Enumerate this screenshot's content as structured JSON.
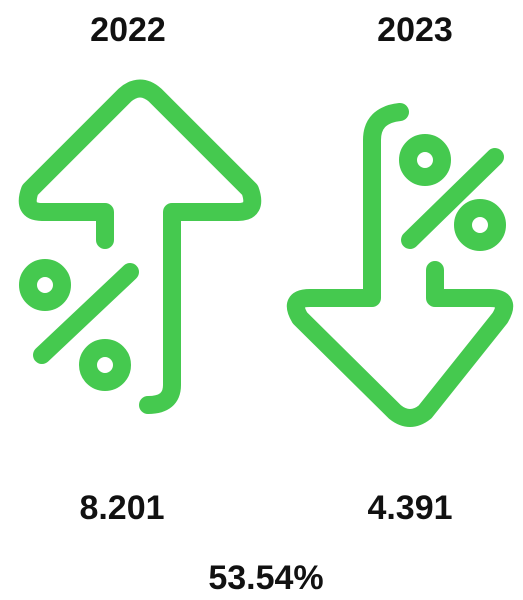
{
  "panels": [
    {
      "year": "2022",
      "value": "8.201"
    },
    {
      "year": "2023",
      "value": "4.391"
    }
  ],
  "change": "53.54%"
}
